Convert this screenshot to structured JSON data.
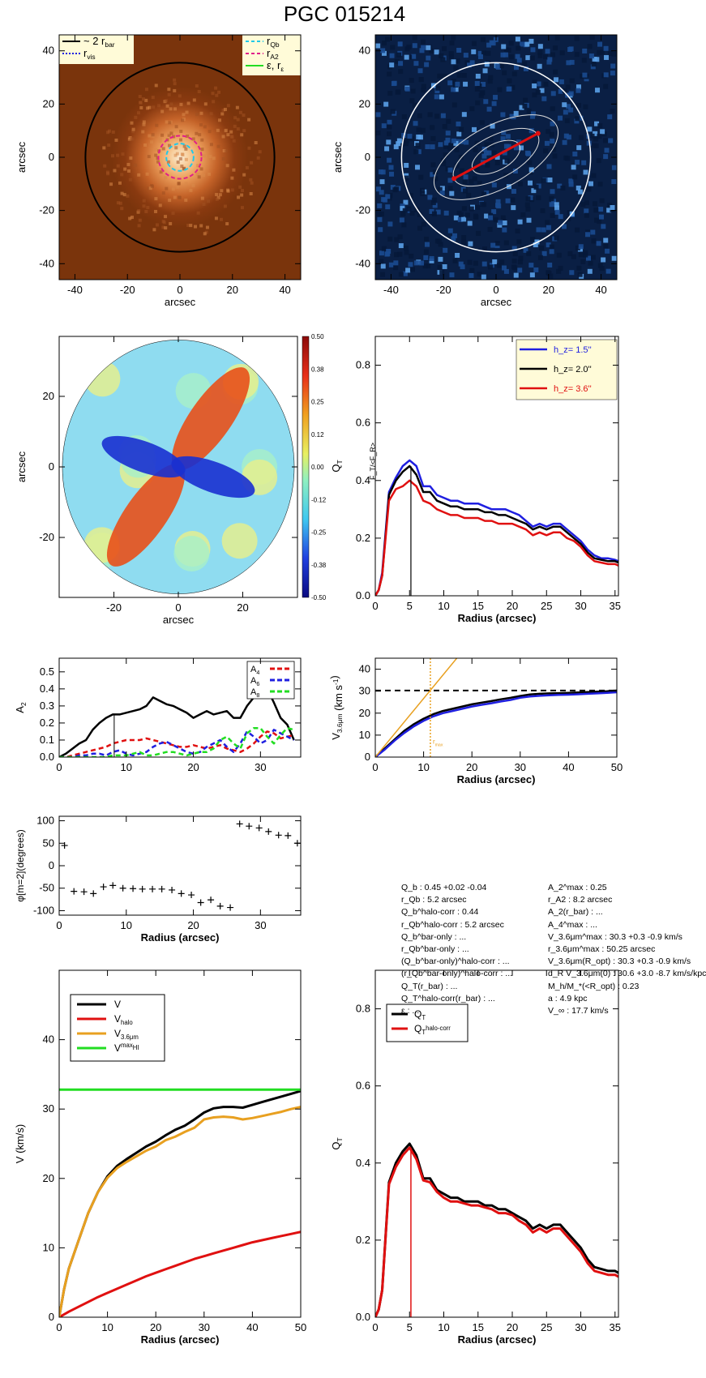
{
  "title": "PGC 015214",
  "colors": {
    "black": "#000000",
    "blue": "#1f1fe0",
    "red": "#e01010",
    "orange": "#e8a020",
    "green": "#22dd22",
    "cyan": "#22c8e8",
    "magenta": "#e0208a",
    "legend_bg": "#fffbd8"
  },
  "panel_image": {
    "xlabel": "arcsec",
    "ylabel": "arcsec",
    "xlim": [
      -46,
      46
    ],
    "ylim": [
      -46,
      46
    ],
    "xticks": [
      -40,
      -20,
      0,
      20,
      40
    ],
    "yticks": [
      -40,
      -20,
      0,
      20,
      40
    ],
    "legend_left": [
      {
        "label": "~ 2 r",
        "sub": "bar",
        "style": "solid",
        "color": "#000000"
      },
      {
        "label": "r",
        "sub": "vis",
        "style": "dotted",
        "color": "#1f1fe0"
      }
    ],
    "legend_right": [
      {
        "label": "r",
        "sub": "Qb",
        "style": "dashed",
        "color": "#22c8e8"
      },
      {
        "label": "r",
        "sub": "A2",
        "style": "dashed",
        "color": "#e0208a"
      },
      {
        "label": "ε, r",
        "sub": "ε",
        "style": "solid",
        "color": "#22dd22"
      }
    ],
    "circle_radius": 36,
    "rqb": 5.2,
    "ra2": 8.2
  },
  "panel_contours": {
    "xlabel": "arcsec",
    "ylabel": "arcsec",
    "xlim": [
      -46,
      46
    ],
    "ylim": [
      -46,
      46
    ],
    "xticks": [
      -40,
      -20,
      0,
      20,
      40
    ],
    "yticks": [
      -40,
      -20,
      0,
      20,
      40
    ],
    "circle_radius": 36
  },
  "panel_ratio": {
    "xlabel": "arcsec",
    "ylabel": "arcsec",
    "xlim": [
      -37,
      37
    ],
    "ylim": [
      -37,
      37
    ],
    "xticks": [
      -20,
      0,
      20
    ],
    "yticks": [
      -20,
      0,
      20
    ],
    "colorbar_label": "F_T/<F_R>",
    "colorbar_ticks": [
      "0.50",
      "0.38",
      "0.25",
      "0.12",
      "0.00",
      "-0.12",
      "-0.25",
      "-0.38",
      "-0.50"
    ]
  },
  "chart_data": [
    {
      "id": "qt_hz",
      "type": "line",
      "xlabel": "Radius (arcsec)",
      "ylabel": "Q_T",
      "xlim": [
        0,
        35.5
      ],
      "ylim": [
        0,
        0.9
      ],
      "xticks": [
        0,
        5,
        10,
        15,
        20,
        25,
        30,
        35
      ],
      "yticks": [
        0.0,
        0.2,
        0.4,
        0.6,
        0.8
      ],
      "x": [
        0,
        0.5,
        1,
        2,
        3,
        4,
        5,
        6,
        7,
        8,
        9,
        10,
        11,
        12,
        13,
        14,
        15,
        16,
        17,
        18,
        19,
        20,
        21,
        22,
        23,
        24,
        25,
        26,
        27,
        28,
        29,
        30,
        31,
        32,
        33,
        34,
        35,
        35.5
      ],
      "series": [
        {
          "name": "h_z=  1.5''",
          "color": "#1f1fe0",
          "values": [
            0,
            0.02,
            0.08,
            0.36,
            0.41,
            0.45,
            0.47,
            0.45,
            0.38,
            0.38,
            0.35,
            0.34,
            0.33,
            0.33,
            0.32,
            0.32,
            0.32,
            0.31,
            0.3,
            0.3,
            0.3,
            0.29,
            0.28,
            0.26,
            0.24,
            0.25,
            0.24,
            0.25,
            0.25,
            0.23,
            0.21,
            0.19,
            0.16,
            0.14,
            0.13,
            0.13,
            0.125,
            0.12
          ]
        },
        {
          "name": "h_z=  2.0''",
          "color": "#000000",
          "values": [
            0,
            0.02,
            0.07,
            0.35,
            0.4,
            0.43,
            0.45,
            0.42,
            0.36,
            0.36,
            0.33,
            0.32,
            0.31,
            0.31,
            0.3,
            0.3,
            0.3,
            0.29,
            0.29,
            0.28,
            0.28,
            0.27,
            0.26,
            0.25,
            0.23,
            0.24,
            0.23,
            0.24,
            0.24,
            0.22,
            0.2,
            0.18,
            0.15,
            0.13,
            0.125,
            0.12,
            0.12,
            0.115
          ]
        },
        {
          "name": "h_z=  3.6''",
          "color": "#e01010",
          "values": [
            0,
            0.02,
            0.07,
            0.33,
            0.37,
            0.38,
            0.4,
            0.38,
            0.33,
            0.32,
            0.3,
            0.29,
            0.28,
            0.28,
            0.27,
            0.27,
            0.27,
            0.26,
            0.26,
            0.25,
            0.25,
            0.25,
            0.24,
            0.23,
            0.21,
            0.22,
            0.21,
            0.22,
            0.22,
            0.2,
            0.19,
            0.17,
            0.14,
            0.12,
            0.115,
            0.11,
            0.11,
            0.105
          ]
        }
      ],
      "vline": 5.2,
      "legend": "top-right"
    },
    {
      "id": "amplitudes",
      "type": "line",
      "ylabel": "A_2",
      "xlim": [
        0,
        36
      ],
      "ylim": [
        0,
        0.58
      ],
      "xticks": [
        0,
        10,
        20,
        30
      ],
      "yticks": [
        0.0,
        0.1,
        0.2,
        0.3,
        0.4,
        0.5
      ],
      "x": [
        0,
        1,
        2,
        3,
        4,
        5,
        6,
        7,
        8,
        9,
        10,
        11,
        12,
        13,
        14,
        15,
        16,
        17,
        18,
        19,
        20,
        21,
        22,
        23,
        24,
        25,
        26,
        27,
        28,
        29,
        30,
        31,
        32,
        33,
        34,
        35
      ],
      "series": [
        {
          "name": "A2",
          "color": "#000000",
          "style": "solid",
          "values": [
            0,
            0.02,
            0.05,
            0.08,
            0.1,
            0.16,
            0.2,
            0.23,
            0.25,
            0.25,
            0.26,
            0.27,
            0.28,
            0.3,
            0.35,
            0.33,
            0.31,
            0.3,
            0.28,
            0.26,
            0.23,
            0.25,
            0.27,
            0.25,
            0.26,
            0.27,
            0.23,
            0.23,
            0.3,
            0.35,
            0.37,
            0.4,
            0.32,
            0.23,
            0.19,
            0.1
          ]
        },
        {
          "name": "A_4",
          "color": "#e01010",
          "style": "dashed",
          "values": [
            0,
            0,
            0.01,
            0.02,
            0.03,
            0.04,
            0.05,
            0.06,
            0.08,
            0.09,
            0.1,
            0.1,
            0.1,
            0.11,
            0.1,
            0.09,
            0.08,
            0.07,
            0.06,
            0.06,
            0.07,
            0.06,
            0.05,
            0.06,
            0.07,
            0.05,
            0.04,
            0.03,
            0.05,
            0.08,
            0.12,
            0.15,
            0.14,
            0.11,
            0.12,
            0.13
          ]
        },
        {
          "name": "A_6",
          "color": "#1f1fe0",
          "style": "dashed",
          "values": [
            0,
            0,
            0,
            0.01,
            0.01,
            0.02,
            0.02,
            0.01,
            0.03,
            0.04,
            0.02,
            0.01,
            0.02,
            0.03,
            0.06,
            0.08,
            0.09,
            0.07,
            0.05,
            0.03,
            0.02,
            0.03,
            0.06,
            0.08,
            0.1,
            0.06,
            0.03,
            0.08,
            0.15,
            0.12,
            0.08,
            0.1,
            0.16,
            0.14,
            0.12,
            0.1
          ]
        },
        {
          "name": "A_8",
          "color": "#22dd22",
          "style": "dashed",
          "values": [
            0,
            0,
            0,
            0,
            0,
            0,
            0,
            0,
            0.01,
            0.01,
            0.01,
            0.02,
            0.03,
            0.01,
            0.01,
            0.02,
            0.03,
            0.03,
            0.02,
            0.01,
            0.02,
            0.03,
            0.03,
            0.05,
            0.1,
            0.12,
            0.08,
            0.05,
            0.14,
            0.17,
            0.17,
            0.12,
            0.08,
            0.13,
            0.17,
            0.16
          ]
        }
      ],
      "vline": 8.2
    },
    {
      "id": "v36",
      "type": "line",
      "xlabel": "Radius (arcsec)",
      "ylabel": "V_3.6μm (km s^-1)",
      "xlim": [
        0,
        50
      ],
      "ylim": [
        0,
        45
      ],
      "xticks": [
        0,
        10,
        20,
        30,
        40,
        50
      ],
      "yticks": [
        0,
        10,
        20,
        30,
        40
      ],
      "x": [
        0,
        2,
        4,
        6,
        8,
        10,
        12,
        14,
        16,
        18,
        20,
        22,
        24,
        26,
        28,
        30,
        32,
        34,
        36,
        38,
        40,
        42,
        44,
        46,
        48,
        50
      ],
      "series": [
        {
          "name": "V",
          "color": "#000000",
          "values": [
            0,
            4,
            8,
            12,
            15,
            17.5,
            19.5,
            21,
            22,
            23,
            24,
            24.8,
            25.5,
            26.3,
            27,
            27.8,
            28.5,
            28.8,
            29,
            29.1,
            29.2,
            29.4,
            29.6,
            29.8,
            30,
            30.3
          ]
        },
        {
          "name": "V_3.6μm",
          "color": "#1f1fe0",
          "values": [
            0,
            3.5,
            7.5,
            11,
            14,
            16.5,
            18.5,
            20,
            21,
            22,
            23,
            23.8,
            24.5,
            25.3,
            26,
            27,
            27.6,
            27.9,
            28.1,
            28.3,
            28.4,
            28.6,
            28.8,
            29,
            29.2,
            29.5
          ]
        }
      ],
      "hline": 30.3,
      "slope_line": {
        "x0": 0,
        "y0": 0,
        "x1": 18,
        "y1": 48
      },
      "vline": 11.4,
      "vline_label": "r^{1/4R_max}_{max}"
    },
    {
      "id": "phase",
      "type": "scatter",
      "xlabel": "Radius (arcsec)",
      "ylabel": "φ[m=2](degrees)",
      "xlim": [
        0,
        36
      ],
      "ylim": [
        -110,
        110
      ],
      "xticks": [
        0,
        10,
        20,
        30
      ],
      "yticks": [
        -100,
        -50,
        0,
        50,
        100
      ],
      "points": [
        [
          0.8,
          45
        ],
        [
          2.2,
          -57
        ],
        [
          3.7,
          -58
        ],
        [
          5.1,
          -62
        ],
        [
          6.6,
          -47
        ],
        [
          8.0,
          -44
        ],
        [
          9.5,
          -50
        ],
        [
          11.0,
          -51
        ],
        [
          12.4,
          -52
        ],
        [
          13.9,
          -52
        ],
        [
          15.3,
          -52
        ],
        [
          16.8,
          -54
        ],
        [
          18.2,
          -62
        ],
        [
          19.7,
          -65
        ],
        [
          21.1,
          -82
        ],
        [
          22.6,
          -76
        ],
        [
          24.0,
          -90
        ],
        [
          25.5,
          -93
        ],
        [
          26.9,
          93
        ],
        [
          28.3,
          88
        ],
        [
          29.8,
          84
        ],
        [
          31.2,
          76
        ],
        [
          32.7,
          68
        ],
        [
          34.1,
          67
        ],
        [
          35.5,
          50
        ]
      ]
    },
    {
      "id": "rotcurve",
      "type": "line",
      "xlabel": "Radius (arcsec)",
      "ylabel": "V (km/s)",
      "xlim": [
        0,
        50
      ],
      "ylim": [
        0,
        50
      ],
      "xticks": [
        0,
        10,
        20,
        30,
        40,
        50
      ],
      "yticks": [
        0,
        10,
        20,
        30,
        40
      ],
      "x": [
        0,
        1,
        2,
        4,
        6,
        8,
        10,
        12,
        14,
        16,
        18,
        20,
        22,
        24,
        26,
        28,
        30,
        32,
        34,
        36,
        38,
        40,
        42,
        44,
        46,
        48,
        50
      ],
      "series": [
        {
          "name": "V",
          "color": "#000000",
          "values": [
            0,
            4,
            7,
            11,
            15,
            18,
            20.3,
            21.8,
            22.8,
            23.7,
            24.6,
            25.3,
            26.2,
            27,
            27.6,
            28.5,
            29.5,
            30.1,
            30.3,
            30.3,
            30.2,
            30.6,
            31,
            31.4,
            31.8,
            32.2,
            32.6
          ]
        },
        {
          "name": "V_halo",
          "color": "#e01010",
          "values": [
            0,
            0.4,
            0.8,
            1.5,
            2.2,
            2.9,
            3.5,
            4.1,
            4.7,
            5.3,
            5.9,
            6.4,
            6.9,
            7.4,
            7.9,
            8.4,
            8.8,
            9.2,
            9.6,
            10,
            10.4,
            10.8,
            11.1,
            11.4,
            11.7,
            12,
            12.3
          ]
        },
        {
          "name": "V_3.6μm",
          "color": "#e8a020",
          "values": [
            0,
            4,
            7,
            11,
            15,
            18,
            20.1,
            21.5,
            22.4,
            23.2,
            24,
            24.6,
            25.5,
            26,
            26.7,
            27.3,
            28.5,
            28.8,
            28.9,
            28.8,
            28.5,
            28.7,
            29,
            29.3,
            29.6,
            30,
            30.3
          ]
        },
        {
          "name": "V_HI^max",
          "color": "#22dd22",
          "values": [
            32.8,
            32.8,
            32.8,
            32.8,
            32.8,
            32.8,
            32.8,
            32.8,
            32.8,
            32.8,
            32.8,
            32.8,
            32.8,
            32.8,
            32.8,
            32.8,
            32.8,
            32.8,
            32.8,
            32.8,
            32.8,
            32.8,
            32.8,
            32.8,
            32.8,
            32.8,
            32.8
          ]
        }
      ],
      "legend": "top-left"
    },
    {
      "id": "qt_halo",
      "type": "line",
      "xlabel": "Radius (arcsec)",
      "ylabel": "Q_T",
      "xlim": [
        0,
        35.5
      ],
      "ylim": [
        0,
        0.9
      ],
      "xticks": [
        0,
        5,
        10,
        15,
        20,
        25,
        30,
        35
      ],
      "yticks": [
        0.0,
        0.2,
        0.4,
        0.6,
        0.8
      ],
      "x": [
        0,
        0.5,
        1,
        2,
        3,
        4,
        5,
        6,
        7,
        8,
        9,
        10,
        11,
        12,
        13,
        14,
        15,
        16,
        17,
        18,
        19,
        20,
        21,
        22,
        23,
        24,
        25,
        26,
        27,
        28,
        29,
        30,
        31,
        32,
        33,
        34,
        35,
        35.5
      ],
      "series": [
        {
          "name": "Q_T",
          "color": "#000000",
          "values": [
            0,
            0.02,
            0.07,
            0.35,
            0.4,
            0.43,
            0.45,
            0.42,
            0.36,
            0.36,
            0.33,
            0.32,
            0.31,
            0.31,
            0.3,
            0.3,
            0.3,
            0.29,
            0.29,
            0.28,
            0.28,
            0.27,
            0.26,
            0.25,
            0.23,
            0.24,
            0.23,
            0.24,
            0.24,
            0.22,
            0.2,
            0.18,
            0.15,
            0.13,
            0.125,
            0.12,
            0.12,
            0.115
          ]
        },
        {
          "name": "Q_T^halo-corr",
          "color": "#e01010",
          "values": [
            0,
            0.02,
            0.07,
            0.345,
            0.39,
            0.42,
            0.44,
            0.41,
            0.355,
            0.35,
            0.325,
            0.31,
            0.3,
            0.3,
            0.295,
            0.29,
            0.29,
            0.285,
            0.28,
            0.27,
            0.27,
            0.265,
            0.25,
            0.24,
            0.22,
            0.23,
            0.22,
            0.23,
            0.23,
            0.21,
            0.19,
            0.17,
            0.14,
            0.12,
            0.115,
            0.11,
            0.11,
            0.105
          ]
        }
      ],
      "vline": 5.2,
      "legend": "top-left"
    }
  ],
  "info_left": [
    "Q_b :  0.45 +0.02 -0.04",
    "r_Qb :   5.2  arcsec",
    "Q_b^halo-corr :  0.44",
    "r_Qb^halo-corr :  5.2 arcsec",
    "Q_b^bar-only : ...",
    "r_Qb^bar-only : ...",
    "(Q_b^bar-only)^halo-corr : ...",
    "(r_Qb^bar-only)^halo-corr : ...",
    "Q_T(r_bar) : ...",
    "Q_T^halo-corr(r_bar) : ...",
    "ε : ..."
  ],
  "info_right": [
    "A_2^max :  0.25",
    "r_A2 :   8.2 arcsec",
    "A_2(r_bar) : ...",
    "A_4^max : ...",
    "V_3.6μm^max :  30.3 +0.3 -0.9 km/s",
    "r_3.6μm^max :  50.25 arcsec",
    "V_3.6μm(R_opt) :  30.3 +0.3 -0.9 km/s",
    "d_R V_3.6μm(0) :  30.6 +3.0 -8.7 km/s/kpc",
    "M_h/M_*(<R_opt) :  0.23",
    "a :   4.9 kpc",
    "V_∞ :  17.7 km/s"
  ]
}
